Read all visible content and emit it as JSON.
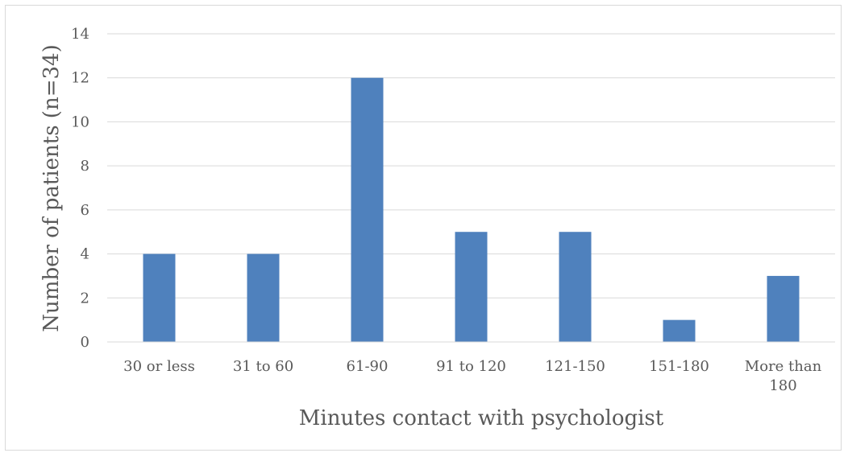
{
  "chart_data": {
    "type": "bar",
    "categories": [
      "30 or less",
      "31 to 60",
      "61-90",
      "91 to 120",
      "121-150",
      "151-180",
      "More than 180"
    ],
    "category_lines": [
      [
        "30 or less"
      ],
      [
        "31 to 60"
      ],
      [
        "61-90"
      ],
      [
        "91 to 120"
      ],
      [
        "121-150"
      ],
      [
        "151-180"
      ],
      [
        "More than",
        "180"
      ]
    ],
    "values": [
      4,
      4,
      12,
      5,
      5,
      1,
      3
    ],
    "title": "",
    "xlabel": "Minutes contact with psychologist",
    "ylabel": "Number of patients (n=34)",
    "ylim": [
      0,
      14
    ],
    "yticks": [
      0,
      2,
      4,
      6,
      8,
      10,
      12,
      14
    ],
    "grid": true,
    "legend": "none",
    "colors": {
      "bar": "#4f81bd",
      "grid": "#d9d9d9",
      "text": "#595959"
    }
  }
}
